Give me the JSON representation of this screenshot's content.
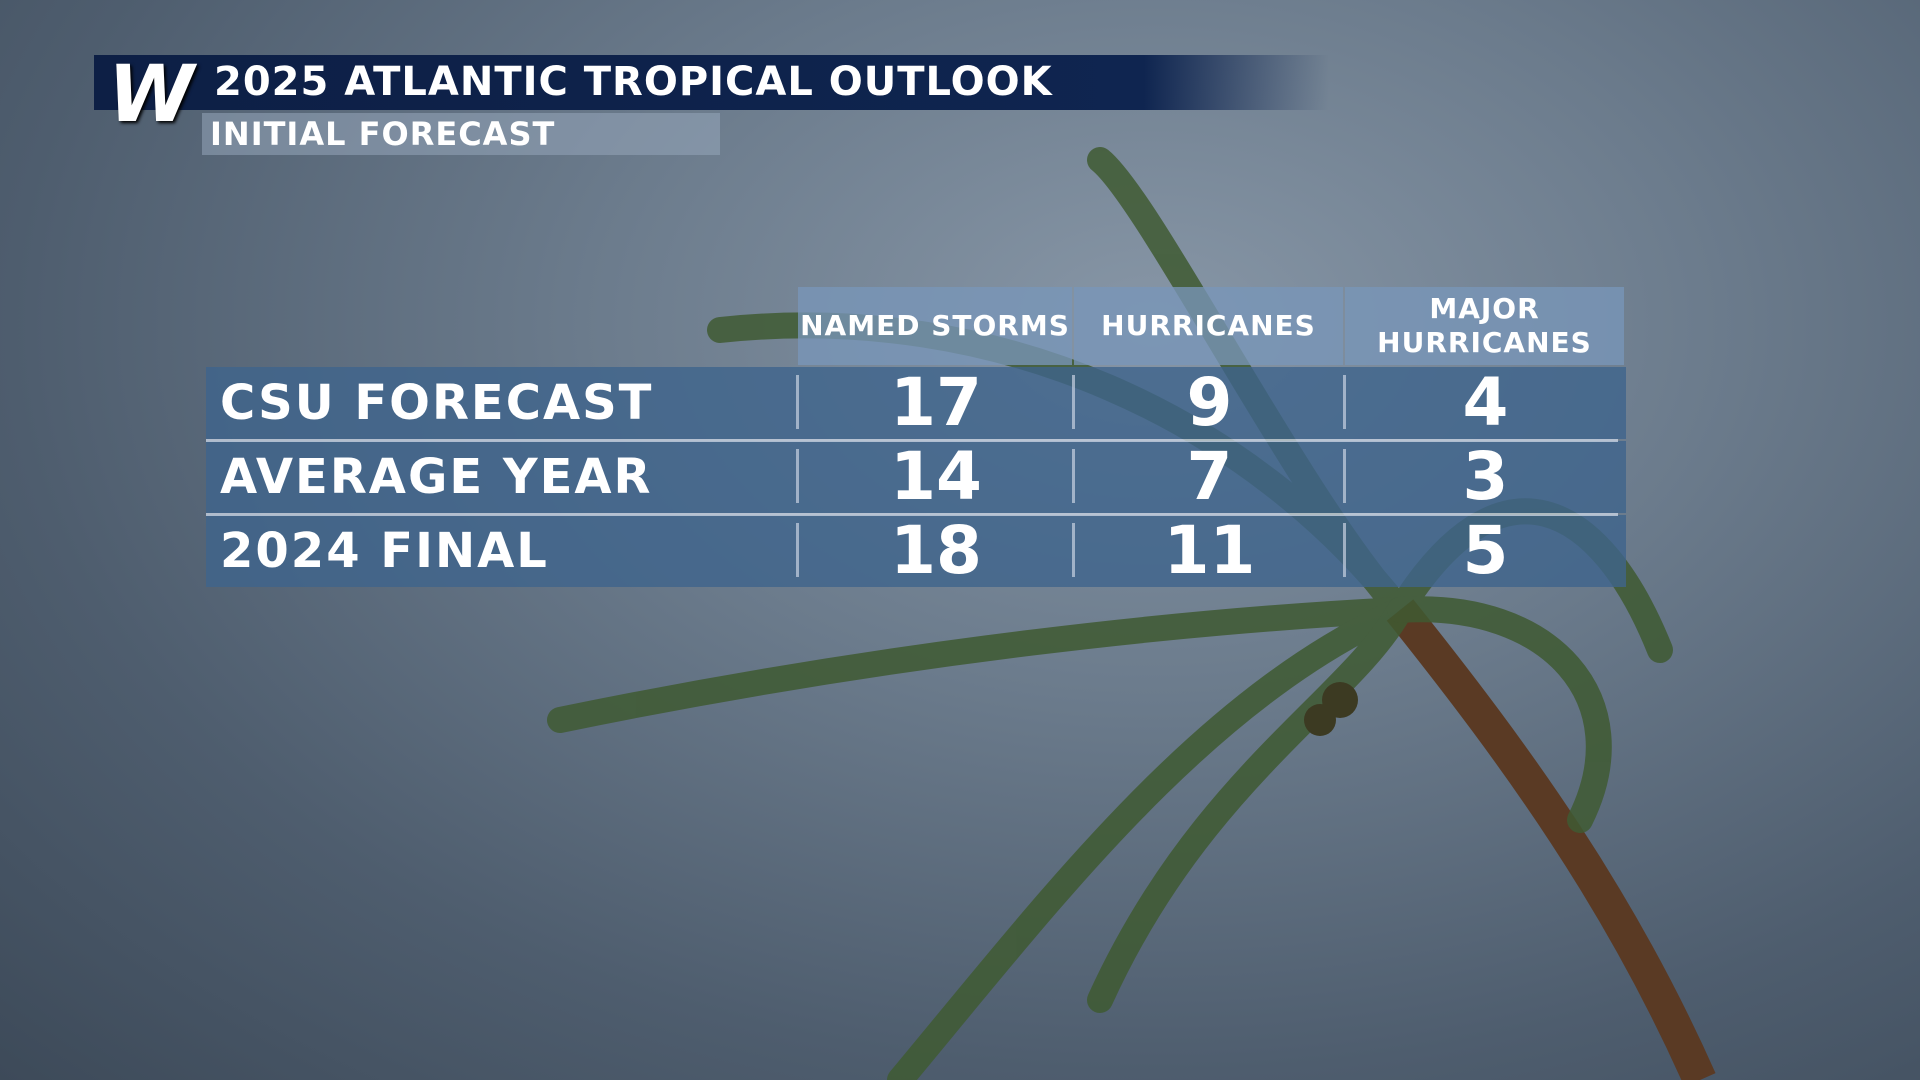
{
  "header": {
    "logo": "W",
    "title": "2025 ATLANTIC TROPICAL OUTLOOK",
    "subtitle": "INITIAL FORECAST"
  },
  "table": {
    "columns": [
      "NAMED STORMS",
      "HURRICANES",
      "MAJOR HURRICANES"
    ],
    "rows": [
      [
        "CSU FORECAST",
        17,
        9,
        4
      ],
      [
        "AVERAGE YEAR",
        14,
        7,
        3
      ],
      [
        "2024 FINAL",
        18,
        11,
        5
      ]
    ]
  }
}
